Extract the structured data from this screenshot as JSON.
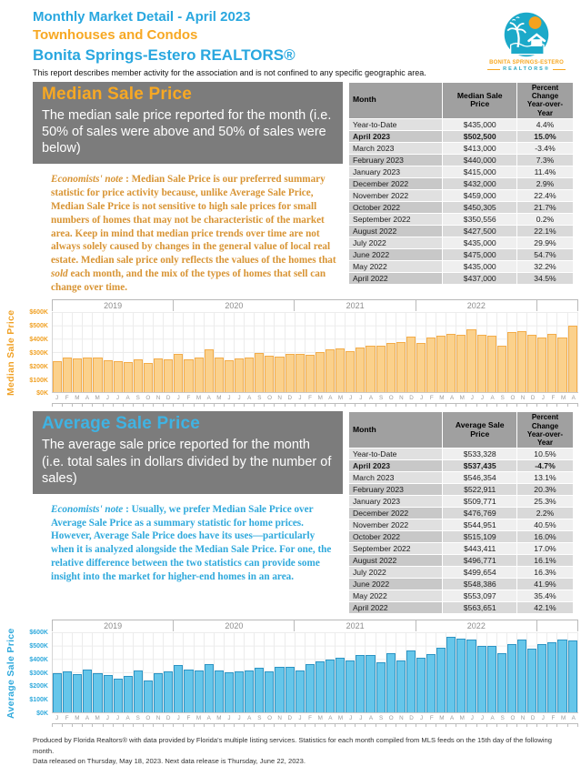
{
  "header": {
    "title": "Monthly Market Detail - April 2023",
    "subtitle": "Townhouses and Condos",
    "association": "Bonita Springs-Estero REALTORS®",
    "disclaimer": "This report describes member activity for the association and is not confined to any specific geographic area.",
    "logo": {
      "line1": "BONITA SPRINGS-ESTERO",
      "line2": "REALTORS®"
    }
  },
  "median_section": {
    "title": "Median Sale Price",
    "description": "The median sale price reported for the month (i.e. 50% of sales were above and 50% of sales were below)",
    "note_label": "Economists' note",
    "note_before_italic": " :  Median Sale Price is our preferred summary statistic for price activity because, unlike Average Sale Price, Median Sale Price is not sensitive to high sale prices for small numbers of homes that may not be characteristic of the market area.  Keep in mind that median price trends over time are not always solely caused by changes in the general value of local real estate.  Median sale price only reflects the values of the homes that ",
    "note_italic": "sold",
    "note_after_italic": " each month, and the mix of the types of homes that sell can change over time.",
    "colors": {
      "accent": "#F7A823",
      "note": "#D89434"
    },
    "table": {
      "columns": [
        "Month",
        "Median Sale Price",
        "Percent Change\nYear-over-Year"
      ],
      "bold_row_index": 1,
      "rows": [
        [
          "Year-to-Date",
          "$435,000",
          "4.4%"
        ],
        [
          "April 2023",
          "$502,500",
          "15.0%"
        ],
        [
          "March 2023",
          "$413,000",
          "-3.4%"
        ],
        [
          "February 2023",
          "$440,000",
          "7.3%"
        ],
        [
          "January 2023",
          "$415,000",
          "11.4%"
        ],
        [
          "December 2022",
          "$432,000",
          "2.9%"
        ],
        [
          "November 2022",
          "$459,000",
          "22.4%"
        ],
        [
          "October 2022",
          "$450,305",
          "21.7%"
        ],
        [
          "September 2022",
          "$350,556",
          "0.2%"
        ],
        [
          "August 2022",
          "$427,500",
          "22.1%"
        ],
        [
          "July 2022",
          "$435,000",
          "29.9%"
        ],
        [
          "June 2022",
          "$475,000",
          "54.7%"
        ],
        [
          "May 2022",
          "$435,000",
          "32.2%"
        ],
        [
          "April 2022",
          "$437,000",
          "34.5%"
        ]
      ]
    }
  },
  "average_section": {
    "title": "Average Sale Price",
    "description": "The average sale price reported for the month (i.e. total sales in dollars divided by the number of sales)",
    "note_label": "Economists' note",
    "note_before_italic": " :  Usually, we prefer Median Sale Price over Average Sale Price as a summary statistic for home prices.  However, Average Sale Price does have its uses—particularly when it is analyzed alongside the Median Sale Price.  For one, the relative difference between the two statistics can provide some insight into the market for higher-end homes in an area.",
    "note_italic": "",
    "note_after_italic": "",
    "colors": {
      "accent": "#3FB3E3",
      "note": "#2FA9DC"
    },
    "table": {
      "columns": [
        "Month",
        "Average Sale Price",
        "Percent Change\nYear-over-Year"
      ],
      "bold_row_index": 1,
      "rows": [
        [
          "Year-to-Date",
          "$533,328",
          "10.5%"
        ],
        [
          "April 2023",
          "$537,435",
          "-4.7%"
        ],
        [
          "March 2023",
          "$546,354",
          "13.1%"
        ],
        [
          "February 2023",
          "$522,911",
          "20.3%"
        ],
        [
          "January 2023",
          "$509,771",
          "25.3%"
        ],
        [
          "December 2022",
          "$476,769",
          "2.2%"
        ],
        [
          "November 2022",
          "$544,951",
          "40.5%"
        ],
        [
          "October 2022",
          "$515,109",
          "16.0%"
        ],
        [
          "September 2022",
          "$443,411",
          "17.0%"
        ],
        [
          "August 2022",
          "$496,771",
          "16.1%"
        ],
        [
          "July 2022",
          "$499,654",
          "16.3%"
        ],
        [
          "June 2022",
          "$548,386",
          "41.9%"
        ],
        [
          "May 2022",
          "$553,097",
          "35.4%"
        ],
        [
          "April 2022",
          "$563,651",
          "42.1%"
        ]
      ]
    }
  },
  "chart_data": [
    {
      "type": "bar",
      "ylabel": "Median Sale Price",
      "x_range": "Jan 2019 - Apr 2023",
      "values_unit": "USD thousands",
      "ylim": [
        0,
        600
      ],
      "ytick_labels": [
        "$600K",
        "$500K",
        "$400K",
        "$300K",
        "$200K",
        "$100K",
        "$0K"
      ],
      "grid": true,
      "year_segments": [
        {
          "label": "2019",
          "months": 12
        },
        {
          "label": "2020",
          "months": 12
        },
        {
          "label": "2021",
          "months": 12
        },
        {
          "label": "2022",
          "months": 12
        },
        {
          "label": "",
          "months": 4
        }
      ],
      "month_letters": [
        "J",
        "F",
        "M",
        "A",
        "M",
        "J",
        "J",
        "A",
        "S",
        "O",
        "N",
        "D",
        "J",
        "F",
        "M",
        "A",
        "M",
        "J",
        "J",
        "A",
        "S",
        "O",
        "N",
        "D",
        "J",
        "F",
        "M",
        "A",
        "M",
        "J",
        "J",
        "A",
        "S",
        "O",
        "N",
        "D",
        "J",
        "F",
        "M",
        "A",
        "M",
        "J",
        "J",
        "A",
        "S",
        "O",
        "N",
        "D",
        "J",
        "F",
        "M",
        "A"
      ],
      "values": [
        238,
        262,
        258,
        265,
        263,
        241,
        234,
        231,
        250,
        218,
        257,
        250,
        292,
        251,
        263,
        325,
        261,
        241,
        257,
        263,
        297,
        276,
        269,
        288,
        290,
        281,
        300,
        325,
        329,
        307,
        335,
        350,
        350,
        370,
        375,
        420,
        372.5,
        410,
        427.5,
        437,
        435,
        475,
        435,
        427.5,
        350.6,
        450.3,
        459,
        432,
        415,
        440,
        413,
        502.5
      ],
      "colors": {
        "bar_fill": "#FBD18C",
        "bar_border": "#F3AC49",
        "axis": "#F0A125"
      }
    },
    {
      "type": "bar",
      "ylabel": "Average Sale Price",
      "x_range": "Jan 2019 - Apr 2023",
      "values_unit": "USD thousands",
      "ylim": [
        0,
        600
      ],
      "ytick_labels": [
        "$600K",
        "$500K",
        "$400K",
        "$300K",
        "$200K",
        "$100K",
        "$0K"
      ],
      "grid": true,
      "year_segments": [
        {
          "label": "2019",
          "months": 12
        },
        {
          "label": "2020",
          "months": 12
        },
        {
          "label": "2021",
          "months": 12
        },
        {
          "label": "2022",
          "months": 12
        },
        {
          "label": "",
          "months": 4
        }
      ],
      "month_letters": [
        "J",
        "F",
        "M",
        "A",
        "M",
        "J",
        "J",
        "A",
        "S",
        "O",
        "N",
        "D",
        "J",
        "F",
        "M",
        "A",
        "M",
        "J",
        "J",
        "A",
        "S",
        "O",
        "N",
        "D",
        "J",
        "F",
        "M",
        "A",
        "M",
        "J",
        "J",
        "A",
        "S",
        "O",
        "N",
        "D",
        "J",
        "F",
        "M",
        "A",
        "M",
        "J",
        "J",
        "A",
        "S",
        "O",
        "N",
        "D",
        "J",
        "F",
        "M",
        "A"
      ],
      "values": [
        297,
        307,
        288,
        322,
        293,
        281,
        252,
        275,
        313,
        237,
        293,
        308,
        357,
        320,
        318,
        360,
        313,
        300,
        310,
        315,
        337,
        308,
        344,
        345,
        313,
        362,
        383,
        397,
        408,
        387,
        430,
        428,
        379,
        444,
        388,
        467,
        407,
        435,
        483,
        563.7,
        553.1,
        548.4,
        499.7,
        496.8,
        443.4,
        515.1,
        545,
        476.8,
        509.8,
        522.9,
        546.4,
        537.4
      ],
      "colors": {
        "bar_fill": "#65C6EA",
        "bar_border": "#2C94C4",
        "axis": "#2FA9DC"
      }
    }
  ],
  "footer": {
    "line1": "Produced by Florida Realtors® with data provided by Florida's multiple listing services. Statistics for each month compiled from MLS feeds on the 15th day of the following month.",
    "line2": "Data released on Thursday, May 18, 2023. Next data release is Thursday, June 22, 2023."
  }
}
